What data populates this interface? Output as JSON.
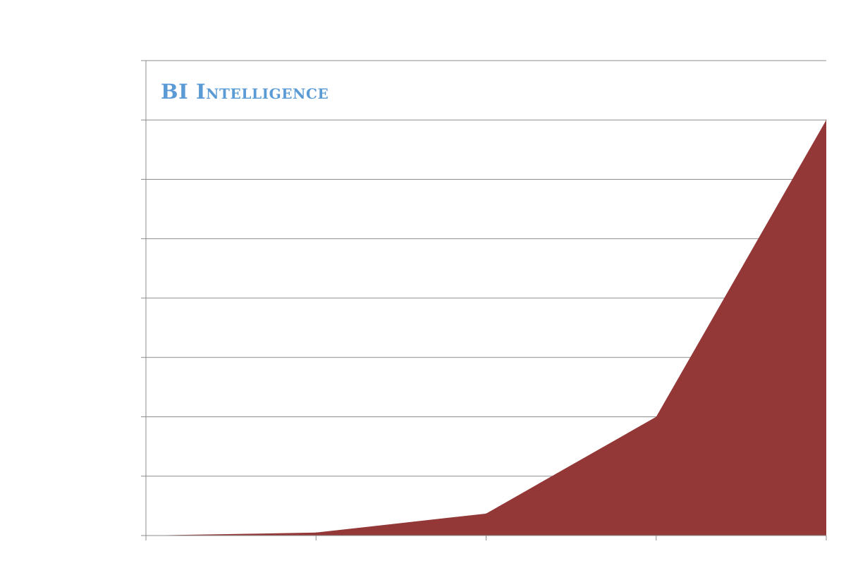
{
  "branding": {
    "logo_text": "BI Intelligence"
  },
  "chart_data": {
    "type": "area",
    "title": "",
    "xlabel": "",
    "ylabel": "",
    "x": [
      0,
      1,
      2,
      3,
      4
    ],
    "series": [
      {
        "values": [
          0,
          0.05,
          0.37,
          2.0,
          7.0
        ]
      }
    ],
    "ylim": [
      0,
      7
    ],
    "y_gridline_count": 7,
    "grid": true,
    "legend": "none",
    "colors": {
      "fill": "#943737",
      "gridline": "#8c8c8c",
      "axis": "#8c8c8c",
      "brand": "#5b9bd5"
    }
  }
}
